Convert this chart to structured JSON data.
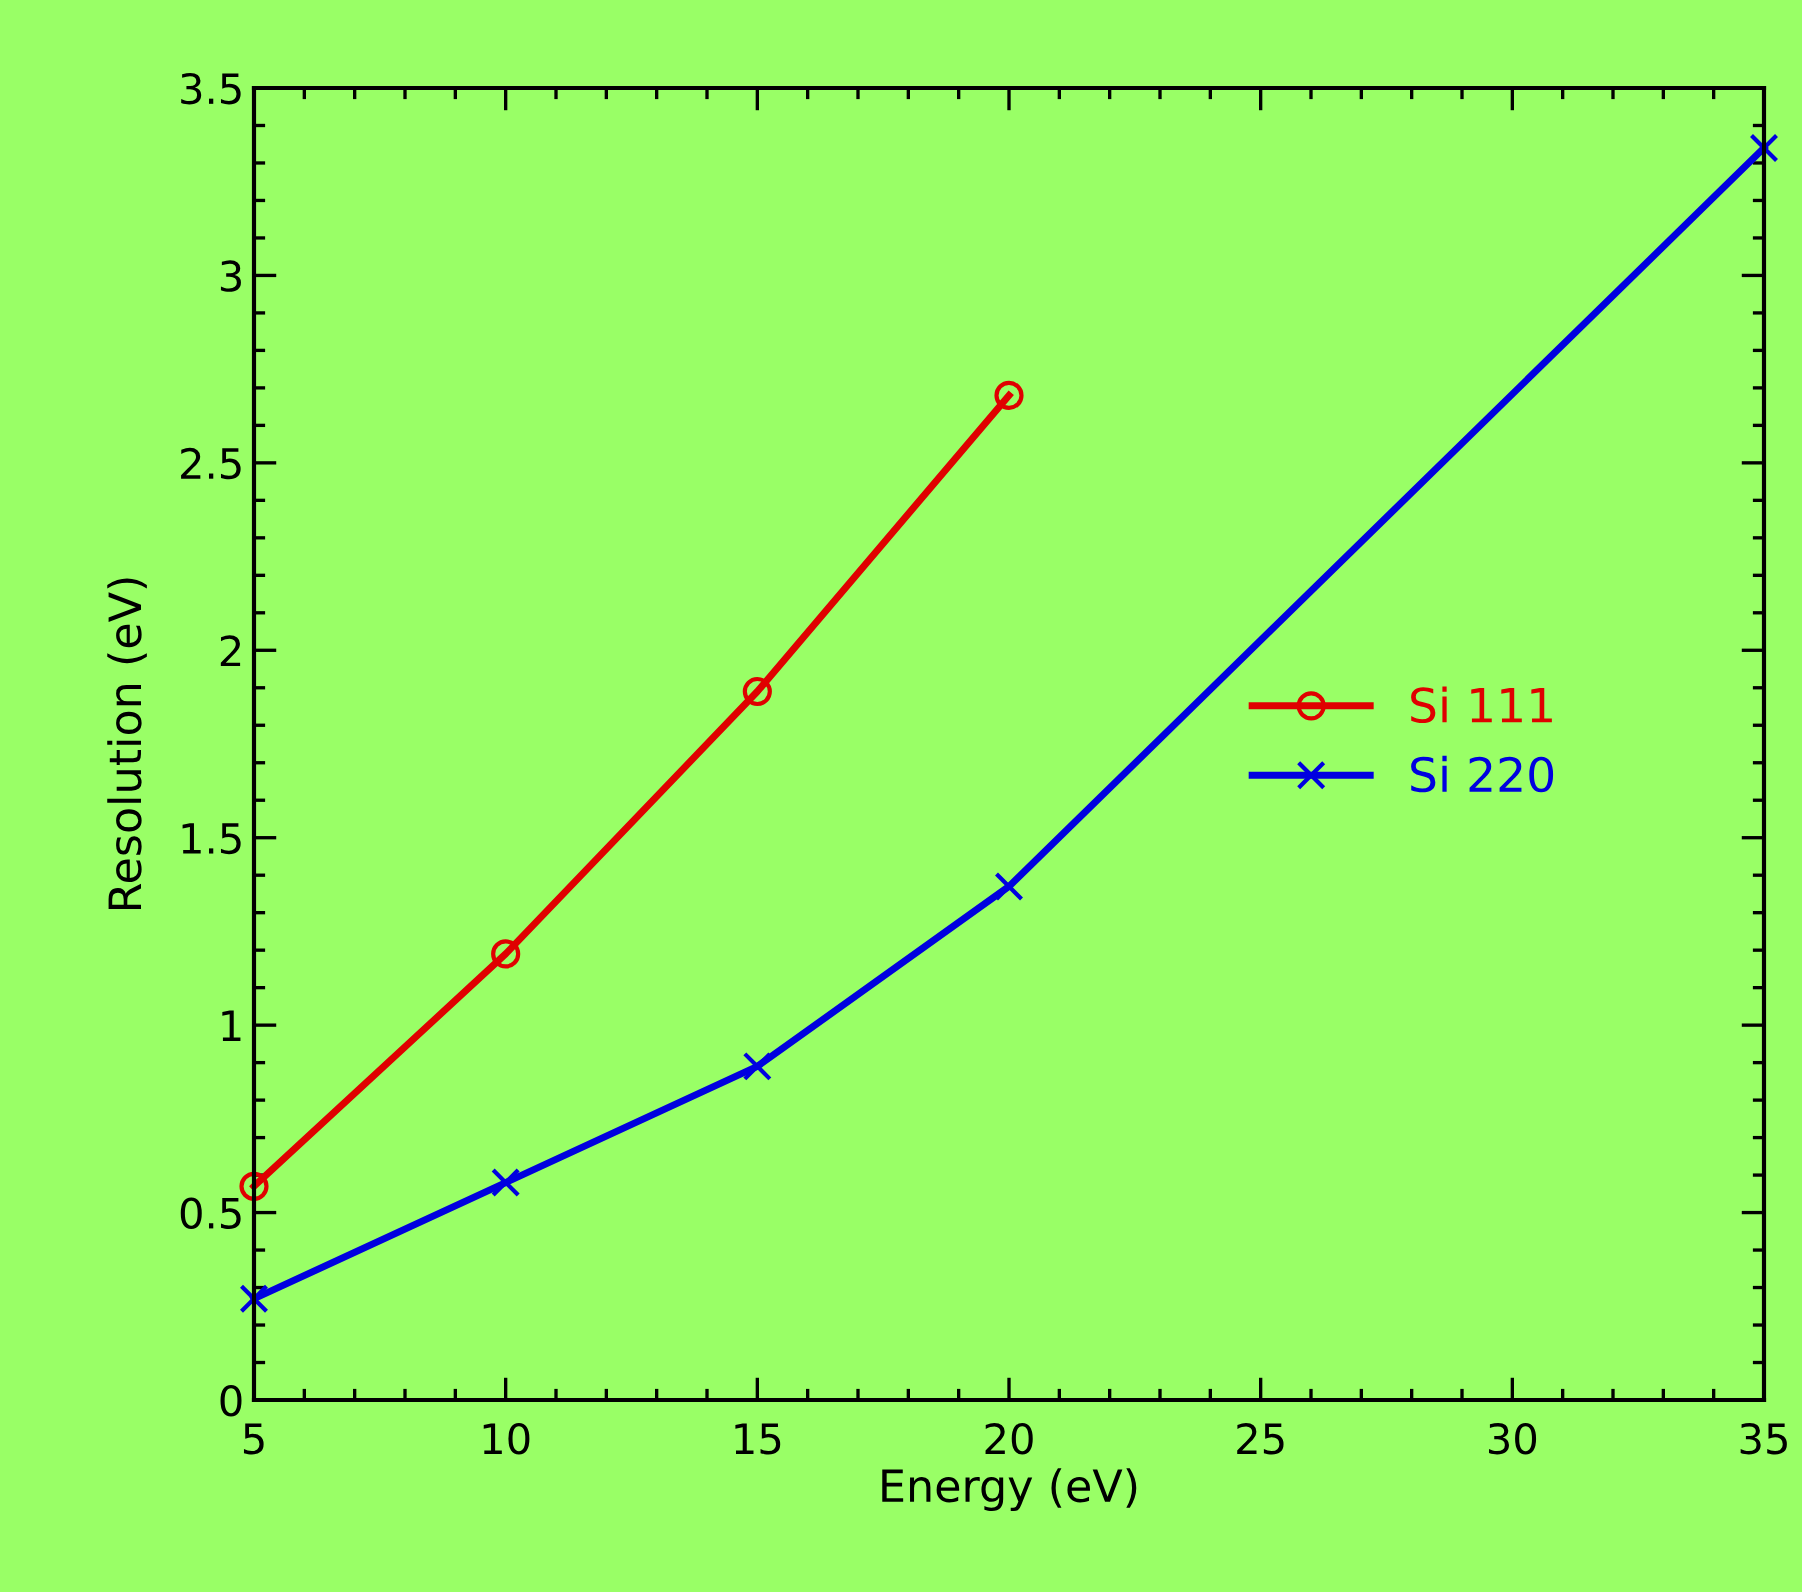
{
  "chart_data": {
    "type": "line",
    "xlabel": "Energy (eV)",
    "ylabel": "Resolution (eV)",
    "xlim": [
      5,
      35
    ],
    "xticks": [
      5,
      10,
      15,
      20,
      25,
      30,
      35
    ],
    "ylim": [
      0,
      3.5
    ],
    "yticks": [
      0,
      0.5,
      1,
      1.5,
      2,
      2.5,
      3,
      3.5
    ],
    "grid": false,
    "legend": "right",
    "series": [
      {
        "name": "Si 111",
        "color": "#e00000",
        "marker": "circle",
        "x": [
          5,
          10,
          15,
          20
        ],
        "values": [
          0.57,
          1.19,
          1.89,
          2.68
        ]
      },
      {
        "name": "Si 220",
        "color": "#0000e0",
        "marker": "cross",
        "x": [
          5,
          10,
          15,
          20,
          35
        ],
        "values": [
          0.27,
          0.58,
          0.89,
          1.37,
          3.34
        ]
      }
    ]
  }
}
